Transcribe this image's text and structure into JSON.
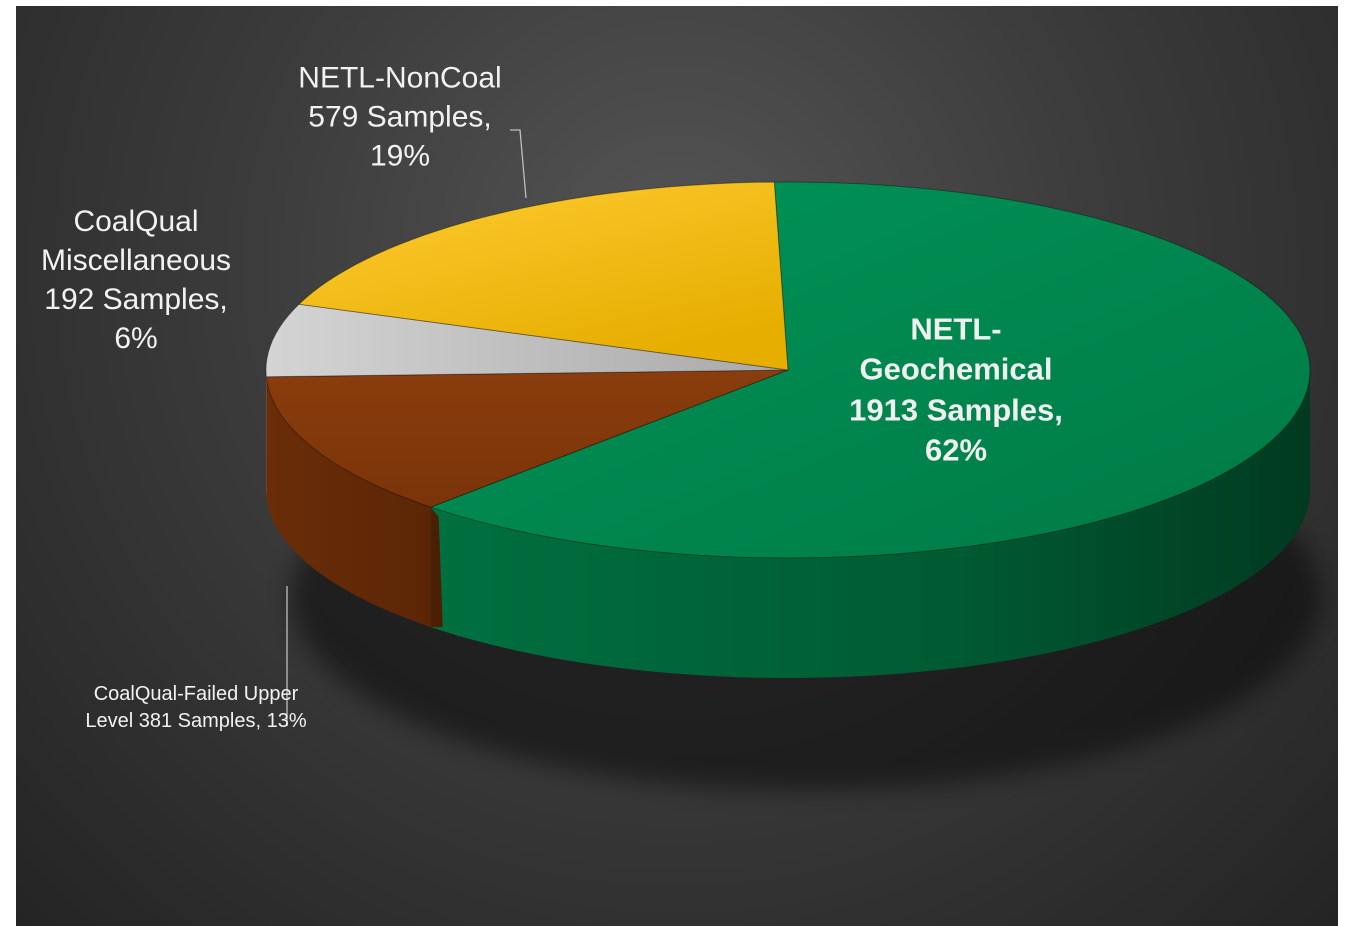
{
  "chart_data": {
    "type": "pie",
    "style": "3d",
    "title": "",
    "slices": [
      {
        "key": "netl-geochemical",
        "name": "NETL-Geochemical",
        "samples": 1913,
        "percent": 62,
        "label_lines": [
          "NETL-",
          "Geochemical",
          "1913 Samples,",
          "62%"
        ],
        "color": "#00894e"
      },
      {
        "key": "coalqual-failed",
        "name": "CoalQual-Failed Upper Level",
        "samples": 381,
        "percent": 13,
        "label_lines": [
          "CoalQual-Failed Upper",
          "Level 381 Samples, 13%"
        ],
        "color": "#843a0c"
      },
      {
        "key": "coalqual-misc",
        "name": "CoalQual Miscellaneous",
        "samples": 192,
        "percent": 6,
        "label_lines": [
          "CoalQual",
          "Miscellaneous",
          "192 Samples,",
          "6%"
        ],
        "color": "#c0c0c0"
      },
      {
        "key": "netl-noncoal",
        "name": "NETL-NonCoal",
        "samples": 579,
        "percent": 19,
        "label_lines": [
          "NETL-NonCoal",
          "579 Samples,",
          "19%"
        ],
        "color": "#fcc000"
      }
    ]
  }
}
